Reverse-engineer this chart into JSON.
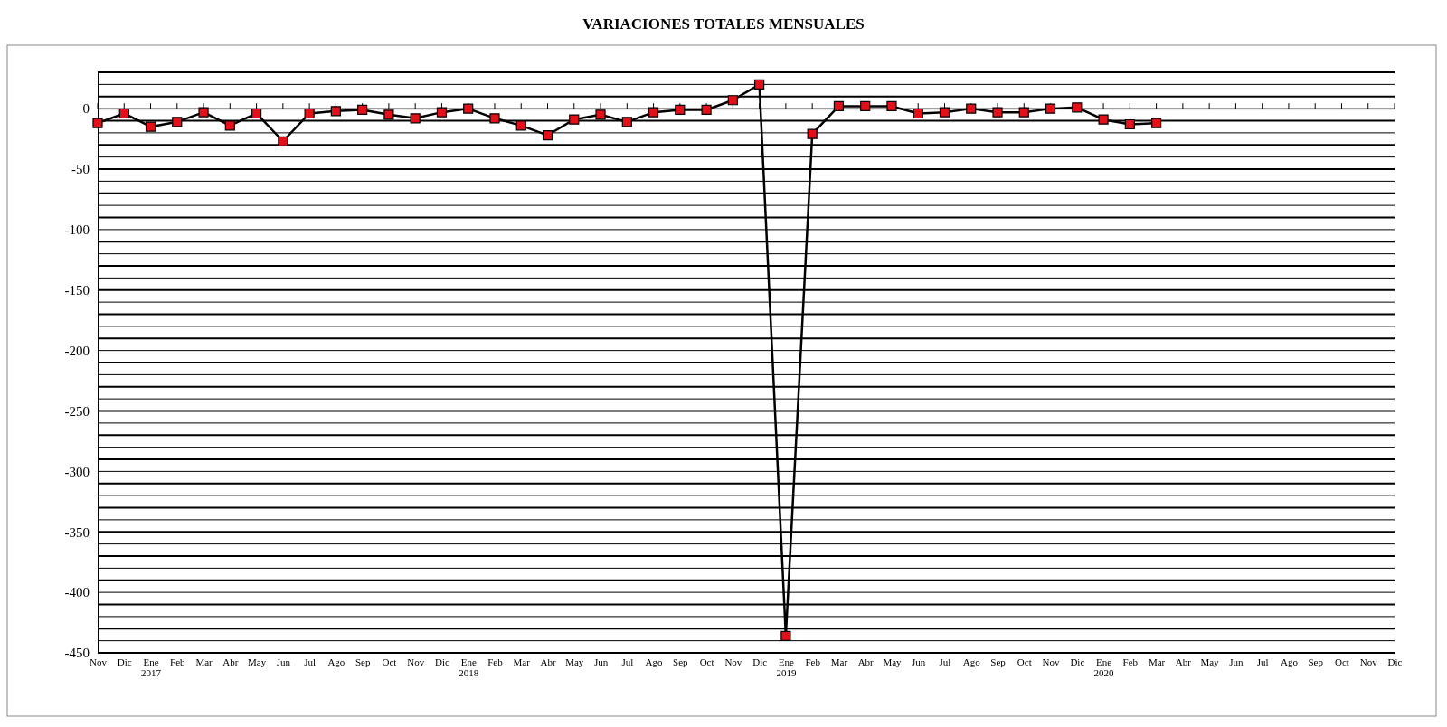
{
  "chart_data": {
    "type": "line",
    "title": "VARIACIONES TOTALES MENSUALES",
    "categories": [
      "Nov",
      "Dic",
      "Ene 2017",
      "Feb",
      "Mar",
      "Abr",
      "May",
      "Jun",
      "Jul",
      "Ago",
      "Sep",
      "Oct",
      "Nov",
      "Dic",
      "Ene 2018",
      "Feb",
      "Mar",
      "Abr",
      "May",
      "Jun",
      "Jul",
      "Ago",
      "Sep",
      "Oct",
      "Nov",
      "Dic",
      "Ene 2019",
      "Feb",
      "Mar",
      "Abr",
      "May",
      "Jun",
      "Jul",
      "Ago",
      "Sep",
      "Oct",
      "Nov",
      "Dic",
      "Ene 2020",
      "Feb",
      "Mar",
      "Abr",
      "May",
      "Jun",
      "Jul",
      "Ago",
      "Sep",
      "Oct",
      "Nov",
      "Dic"
    ],
    "series": [
      {
        "color": "#e3101a",
        "values": [
          -12,
          -4,
          -15,
          -11,
          -3,
          -14,
          -4,
          -27,
          -4,
          -2,
          -1,
          -5,
          -8,
          -3,
          0,
          -8,
          -14,
          -22,
          -9,
          -5,
          -11,
          -3,
          -1,
          -1,
          7,
          20,
          -436,
          -21,
          2,
          2,
          2,
          -4,
          -3,
          0,
          -3,
          -3,
          0,
          1,
          -9,
          -13,
          -12,
          null,
          null,
          null,
          null,
          null,
          null,
          null,
          null,
          null
        ]
      }
    ],
    "ylim": [
      -450,
      30
    ],
    "yticks": [
      -450,
      {
        "value": -440,
        "label": null
      },
      {
        "value": -430,
        "label": null
      },
      {
        "value": -420,
        "label": null
      },
      {
        "value": -410,
        "label": null
      },
      -400,
      {
        "value": -390,
        "label": null
      },
      {
        "value": -380,
        "label": null
      },
      {
        "value": -370,
        "label": null
      },
      {
        "value": -360,
        "label": null
      },
      -350,
      {
        "value": -340,
        "label": null
      },
      {
        "value": -330,
        "label": null
      },
      {
        "value": -320,
        "label": null
      },
      {
        "value": -310,
        "label": null
      },
      -300,
      {
        "value": -290,
        "label": null
      },
      {
        "value": -280,
        "label": null
      },
      {
        "value": -270,
        "label": null
      },
      {
        "value": -260,
        "label": null
      },
      -250,
      {
        "value": -240,
        "label": null
      },
      {
        "value": -230,
        "label": null
      },
      {
        "value": -220,
        "label": null
      },
      {
        "value": -210,
        "label": null
      },
      -200,
      {
        "value": -190,
        "label": null
      },
      {
        "value": -180,
        "label": null
      },
      {
        "value": -170,
        "label": null
      },
      {
        "value": -160,
        "label": null
      },
      -150,
      {
        "value": -140,
        "label": null
      },
      {
        "value": -130,
        "label": null
      },
      {
        "value": -120,
        "label": null
      },
      {
        "value": -110,
        "label": null
      },
      -100,
      {
        "value": -90,
        "label": null
      },
      {
        "value": -80,
        "label": null
      },
      {
        "value": -70,
        "label": null
      },
      {
        "value": -60,
        "label": null
      },
      -50,
      {
        "value": -40,
        "label": null
      },
      {
        "value": -30,
        "label": null
      },
      {
        "value": -20,
        "label": null
      },
      {
        "value": -10,
        "label": null
      },
      0,
      {
        "value": 10,
        "label": null
      },
      {
        "value": 20,
        "label": null
      },
      {
        "value": 30,
        "label": null
      }
    ],
    "grid": "y",
    "marker": "square",
    "line_style": "solid"
  }
}
